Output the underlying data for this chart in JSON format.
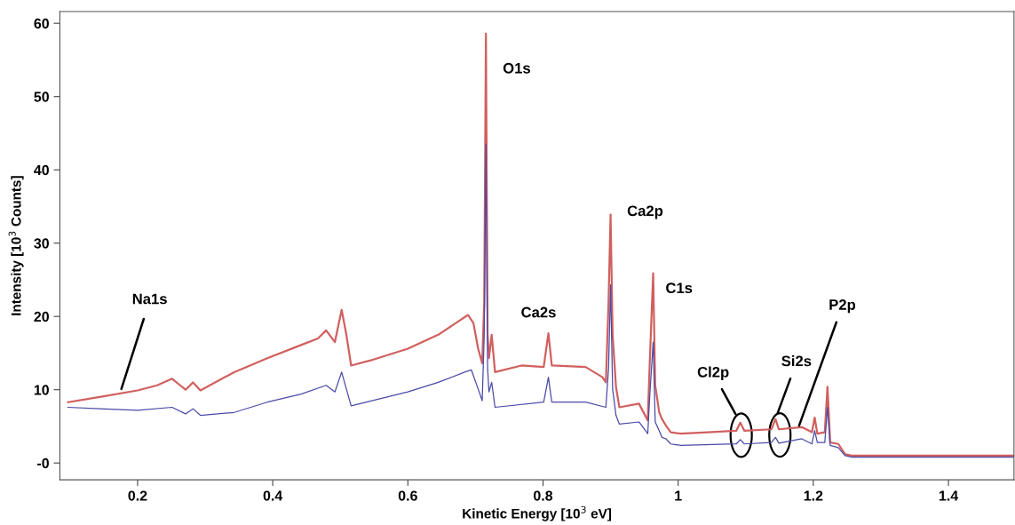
{
  "chart_data": {
    "type": "line",
    "xlabel": "Kinetic Energy [10$^{3}$ eV]",
    "ylabel": "Intensity [10$^{3}$ Counts]",
    "xlim": [
      0.085,
      1.497
    ],
    "ylim": [
      -2.3,
      61.6
    ],
    "xticks": [
      0.2,
      0.4,
      0.6,
      0.8,
      {
        "value": 1,
        "label": "1"
      },
      1.2,
      1.4
    ],
    "yticks": [
      {
        "value": 0,
        "label": "-0"
      },
      10,
      20,
      30,
      40,
      50,
      60
    ],
    "grid": false,
    "legend": false,
    "marker": "none",
    "line_style": "solid",
    "series": [
      {
        "color": "#d0605f",
        "x": [
          0.097,
          0.144,
          0.2,
          0.229,
          0.251,
          0.263,
          0.271,
          0.282,
          0.293,
          0.343,
          0.392,
          0.442,
          0.467,
          0.479,
          0.492,
          0.502,
          0.509,
          0.516,
          0.545,
          0.6,
          0.645,
          0.689,
          0.697,
          0.704,
          0.71,
          0.713,
          0.7155,
          0.718,
          0.72,
          0.724,
          0.729,
          0.768,
          0.801,
          0.808,
          0.813,
          0.863,
          0.888,
          0.893,
          0.897,
          0.9,
          0.903,
          0.908,
          0.913,
          0.942,
          0.955,
          0.958,
          0.963,
          0.966,
          0.972,
          0.976,
          0.982,
          0.989,
          1.004,
          1.044,
          1.086,
          1.092,
          1.098,
          1.138,
          1.144,
          1.149,
          1.183,
          1.198,
          1.202,
          1.206,
          1.217,
          1.221,
          1.225,
          1.237,
          1.247,
          1.257,
          1.497
        ],
        "values": [
          8.3,
          9.0,
          9.9,
          10.6,
          11.5,
          10.6,
          10.0,
          11.0,
          9.9,
          12.4,
          14.3,
          16.1,
          17.0,
          18.1,
          16.5,
          20.9,
          17.5,
          13.3,
          14.0,
          15.6,
          17.5,
          20.2,
          19.1,
          15.6,
          13.6,
          22.0,
          58.6,
          17.5,
          14.3,
          17.5,
          12.4,
          13.3,
          13.1,
          17.7,
          13.3,
          13.1,
          11.7,
          11.0,
          22.0,
          33.9,
          17.5,
          10.4,
          7.6,
          8.1,
          5.8,
          13.8,
          25.9,
          10.6,
          6.9,
          6.0,
          5.1,
          4.2,
          4.0,
          4.2,
          4.4,
          5.5,
          4.4,
          4.6,
          6.0,
          4.6,
          4.9,
          4.2,
          6.2,
          4.0,
          4.2,
          10.4,
          2.8,
          2.6,
          1.2,
          1.0,
          1.0
        ]
      },
      {
        "color": "#4a4aa8",
        "x": [
          0.097,
          0.144,
          0.2,
          0.251,
          0.271,
          0.282,
          0.293,
          0.343,
          0.392,
          0.442,
          0.479,
          0.492,
          0.502,
          0.509,
          0.516,
          0.6,
          0.645,
          0.684,
          0.694,
          0.704,
          0.71,
          0.713,
          0.7155,
          0.718,
          0.72,
          0.724,
          0.729,
          0.801,
          0.808,
          0.813,
          0.863,
          0.893,
          0.897,
          0.9,
          0.903,
          0.908,
          0.913,
          0.942,
          0.955,
          0.958,
          0.963,
          0.966,
          0.972,
          0.976,
          0.982,
          0.989,
          1.004,
          1.086,
          1.092,
          1.098,
          1.138,
          1.144,
          1.149,
          1.183,
          1.198,
          1.202,
          1.206,
          1.217,
          1.221,
          1.225,
          1.237,
          1.247,
          1.257,
          1.497
        ],
        "values": [
          7.6,
          7.4,
          7.2,
          7.6,
          6.7,
          7.4,
          6.5,
          6.9,
          8.3,
          9.4,
          10.6,
          9.7,
          12.4,
          10.1,
          7.8,
          9.7,
          11.0,
          12.4,
          12.7,
          10.1,
          8.5,
          17.5,
          43.5,
          12.9,
          9.7,
          11.0,
          7.6,
          8.3,
          11.7,
          8.3,
          8.3,
          7.6,
          12.9,
          24.3,
          10.1,
          6.5,
          5.3,
          5.6,
          4.0,
          9.2,
          16.5,
          5.6,
          4.4,
          3.5,
          3.3,
          2.6,
          2.4,
          2.6,
          3.2,
          2.6,
          2.8,
          3.5,
          2.7,
          3.3,
          2.6,
          4.4,
          2.8,
          2.8,
          7.6,
          2.4,
          2.1,
          1.0,
          0.8,
          0.8
        ]
      }
    ],
    "annotations": [
      {
        "text": "Na1s",
        "x": 0.176,
        "y": 10.1
      },
      {
        "text": "O1s",
        "x": 0.7155,
        "y": 53.7
      },
      {
        "text": "Ca2s",
        "x": 0.808,
        "y": 17.7
      },
      {
        "text": "Ca2p",
        "x": 0.9,
        "y": 33.9
      },
      {
        "text": "C1s",
        "x": 0.963,
        "y": 25.9
      },
      {
        "text": "Cl2p",
        "x": 1.092,
        "y": 5.5
      },
      {
        "text": "Si2s",
        "x": 1.144,
        "y": 6.0
      },
      {
        "text": "P2p",
        "x": 1.179,
        "y": 5.1
      }
    ]
  }
}
